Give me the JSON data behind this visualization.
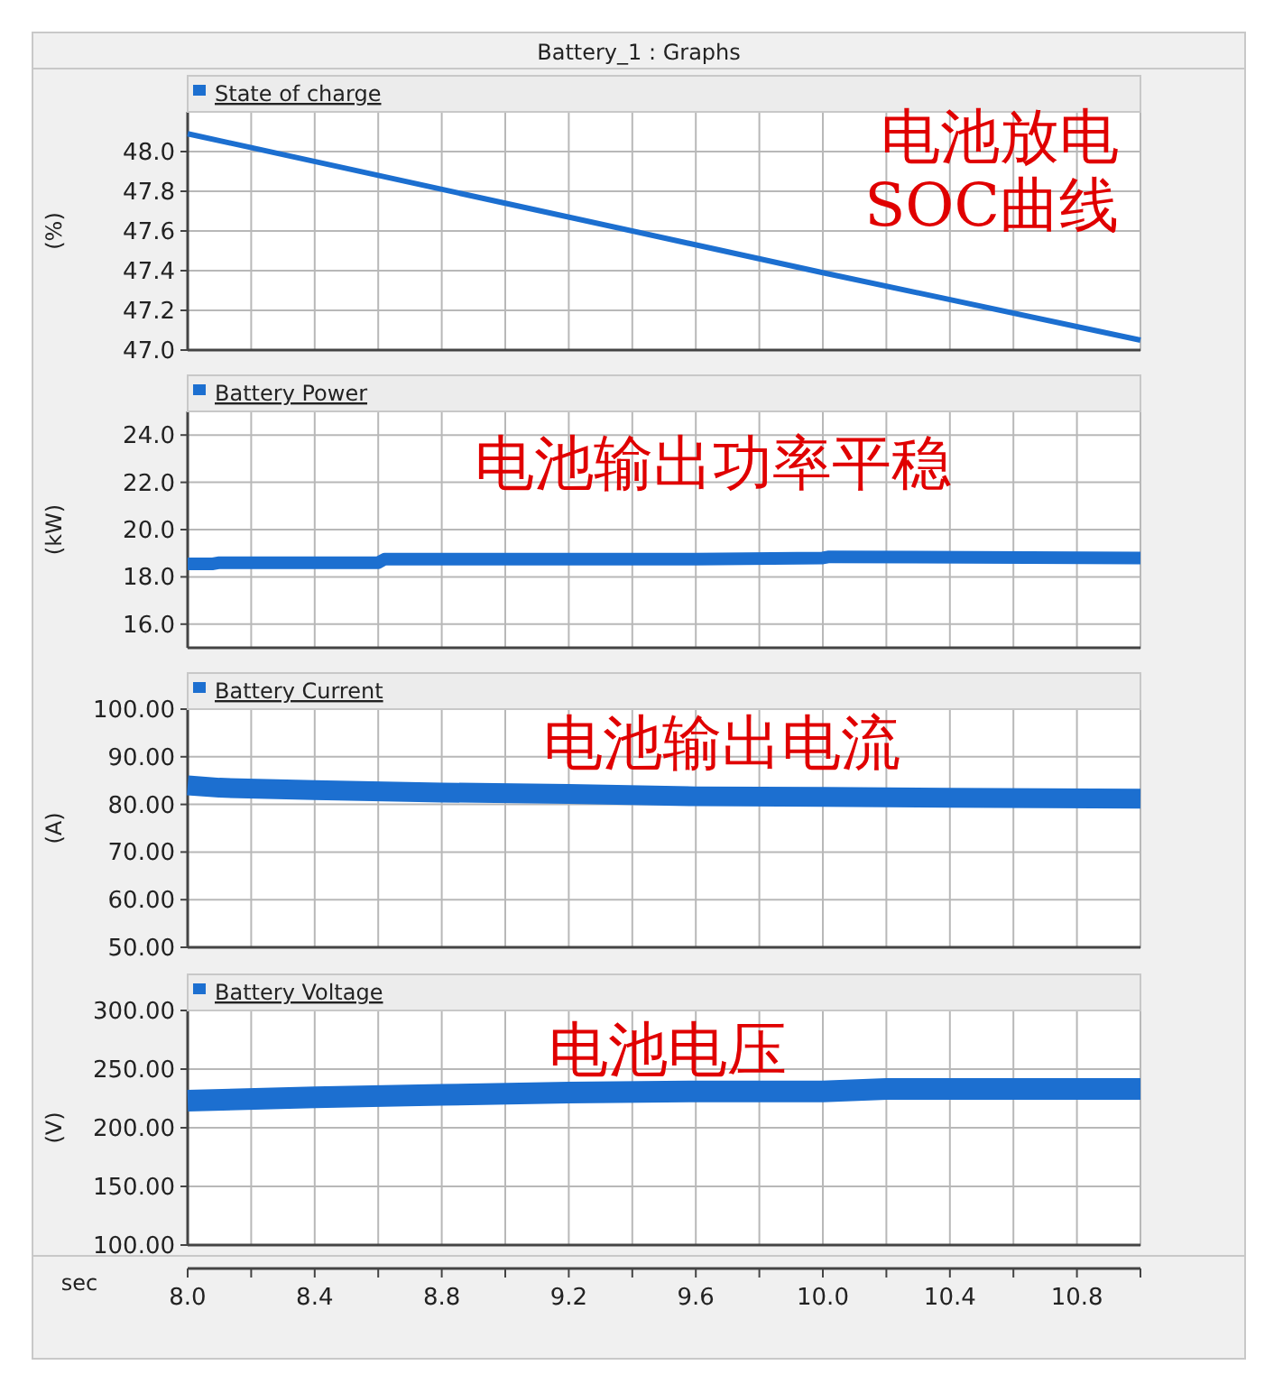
{
  "chart_data": [
    {
      "type": "line",
      "title": "Battery_1 : Graphs",
      "ylabel": "(%)",
      "annotations": [
        "电池放电\nSOC曲线"
      ],
      "x": [
        8.0,
        9.0,
        10.0,
        11.0
      ],
      "series": [
        {
          "name": "State of charge",
          "color": "#1c6fd0",
          "values": [
            48.09,
            47.74,
            47.39,
            47.05
          ]
        }
      ],
      "xlim": [
        8.0,
        11.0
      ],
      "ylim": [
        47.0,
        48.2
      ],
      "yticks": [
        {
          "value": 47.0,
          "label": "47.0"
        },
        {
          "value": 47.2,
          "label": "47.2"
        },
        {
          "value": 47.4,
          "label": "47.4"
        },
        {
          "value": 47.6,
          "label": "47.6"
        },
        {
          "value": 47.8,
          "label": "47.8"
        },
        {
          "value": 48.0,
          "label": "48.0"
        }
      ],
      "grid": true,
      "legend": "top left",
      "tick_labels": "y"
    },
    {
      "type": "line",
      "ylabel": "(kW)",
      "annotations": [
        "电池输出功率平稳"
      ],
      "x": [
        8.0,
        8.08,
        8.1,
        8.6,
        8.62,
        9.6,
        10.0,
        10.02,
        11.0
      ],
      "series": [
        {
          "name": "Battery Power",
          "color": "#1c6fd0",
          "values": [
            18.55,
            18.55,
            18.6,
            18.6,
            18.75,
            18.75,
            18.8,
            18.85,
            18.8
          ]
        }
      ],
      "xlim": [
        8.0,
        11.0
      ],
      "ylim": [
        15.0,
        25.0
      ],
      "yticks": [
        {
          "value": 16,
          "label": "16.0"
        },
        {
          "value": 18,
          "label": "18.0"
        },
        {
          "value": 20,
          "label": "20.0"
        },
        {
          "value": 22,
          "label": "22.0"
        },
        {
          "value": 24,
          "label": "24.0"
        }
      ],
      "grid": true,
      "legend": "top left",
      "tick_labels": "y"
    },
    {
      "type": "line",
      "ylabel": "(A)",
      "annotations": [
        "电池输出电流"
      ],
      "x": [
        8.0,
        8.1,
        8.4,
        8.8,
        9.2,
        9.6,
        10.0,
        10.4,
        11.0
      ],
      "series": [
        {
          "name": "Battery Current",
          "color": "#1c6fd0",
          "values": [
            84.0,
            83.5,
            83.0,
            82.5,
            82.2,
            81.7,
            81.6,
            81.4,
            81.2
          ]
        }
      ],
      "xlim": [
        8.0,
        11.0
      ],
      "ylim": [
        50.0,
        100.0
      ],
      "yticks": [
        {
          "value": 50,
          "label": "50.00"
        },
        {
          "value": 60,
          "label": "60.00"
        },
        {
          "value": 70,
          "label": "70.00"
        },
        {
          "value": 80,
          "label": "80.00"
        },
        {
          "value": 90,
          "label": "90.00"
        },
        {
          "value": 100,
          "label": "100.00"
        }
      ],
      "grid": true,
      "legend": "top left",
      "tick_labels": "y"
    },
    {
      "type": "line",
      "ylabel": "(V)",
      "xlabel": "sec",
      "annotations": [
        "电池电压"
      ],
      "x": [
        8.0,
        8.4,
        8.8,
        9.2,
        9.6,
        10.0,
        10.2,
        11.0
      ],
      "series": [
        {
          "name": "Battery Voltage",
          "color": "#1c6fd0",
          "values": [
            223,
            226,
            228,
            230,
            231,
            231,
            233,
            233
          ]
        }
      ],
      "xlim": [
        8.0,
        11.0
      ],
      "ylim": [
        100.0,
        300.0
      ],
      "xticks": [
        {
          "value": 8.0,
          "label": "8.0"
        },
        {
          "value": 8.2,
          "label": null
        },
        {
          "value": 8.4,
          "label": "8.4"
        },
        {
          "value": 8.6,
          "label": null
        },
        {
          "value": 8.8,
          "label": "8.8"
        },
        {
          "value": 9.0,
          "label": null
        },
        {
          "value": 9.2,
          "label": "9.2"
        },
        {
          "value": 9.4,
          "label": null
        },
        {
          "value": 9.6,
          "label": "9.6"
        },
        {
          "value": 9.8,
          "label": null
        },
        {
          "value": 10.0,
          "label": "10.0"
        },
        {
          "value": 10.2,
          "label": null
        },
        {
          "value": 10.4,
          "label": "10.4"
        },
        {
          "value": 10.6,
          "label": null
        },
        {
          "value": 10.8,
          "label": "10.8"
        },
        {
          "value": 11.0,
          "label": null
        }
      ],
      "yticks": [
        {
          "value": 100,
          "label": "100.00"
        },
        {
          "value": 150,
          "label": "150.00"
        },
        {
          "value": 200,
          "label": "200.00"
        },
        {
          "value": 250,
          "label": "250.00"
        },
        {
          "value": 300,
          "label": "300.00"
        }
      ],
      "grid": true,
      "legend": "top left"
    }
  ]
}
